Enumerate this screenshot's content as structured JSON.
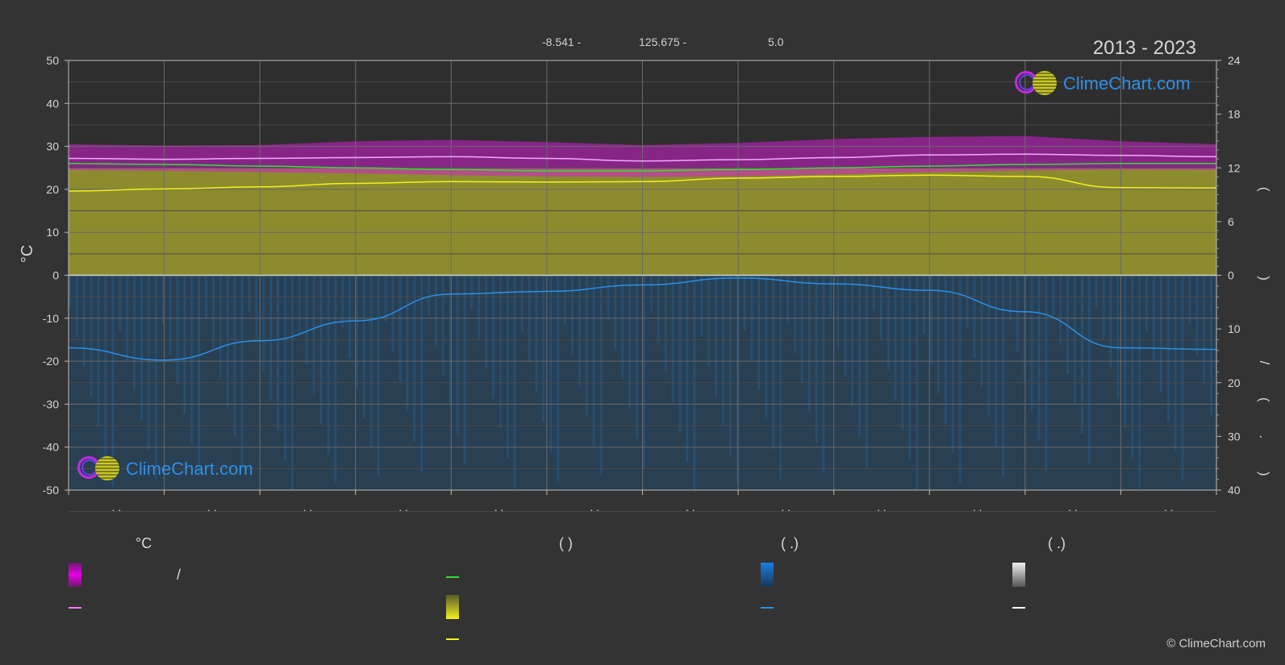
{
  "header": {
    "lat": "-8.541 -",
    "lon": "125.675 -",
    "elev": "5.0",
    "range": "2013 - 2023"
  },
  "brand": "ClimeChart.com",
  "copyright": "© ClimeChart.com",
  "chart_data": {
    "type": "area",
    "x_tick_labels": [
      ". .",
      ". .",
      ". .",
      ". .",
      ". .",
      ". .",
      ". .",
      ". .",
      ". .",
      ". .",
      ". .",
      ". ."
    ],
    "ylabel_left": "°C",
    "ylim_left": [
      -50,
      50
    ],
    "yticks_left": [
      50,
      40,
      30,
      20,
      10,
      0,
      -10,
      -20,
      -30,
      -40,
      -50
    ],
    "yticks_right_top": [
      24,
      18,
      12,
      6,
      0
    ],
    "yticks_right_bottom": [
      10,
      20,
      30,
      40
    ],
    "right_label_top": "( )",
    "right_label_bottom": "/ ( . )",
    "grid": true,
    "months_x": [
      0,
      1,
      2,
      3,
      4,
      5,
      6,
      7,
      8,
      9,
      10,
      11,
      12
    ],
    "series": [
      {
        "values": [
          27.2,
          27.0,
          27.2,
          27.4,
          27.6,
          27.2,
          26.6,
          26.9,
          27.4,
          28.0,
          28.2,
          27.9,
          27.6
        ],
        "color": "#f5a8ff"
      },
      {
        "values": [
          26.0,
          25.8,
          25.4,
          25.0,
          24.6,
          24.3,
          24.3,
          24.6,
          25.0,
          25.4,
          25.8,
          26.0,
          26.0
        ],
        "color": "#33dd33"
      },
      {
        "values": [
          19.6,
          20.1,
          20.6,
          21.4,
          21.8,
          21.7,
          21.8,
          22.6,
          23.0,
          23.3,
          23.0,
          20.4,
          20.3
        ],
        "color": "#f0f020"
      },
      {
        "values": [
          13.5,
          15.8,
          12.2,
          8.5,
          3.5,
          3.0,
          1.8,
          0.5,
          1.6,
          2.8,
          6.8,
          13.5,
          13.8
        ],
        "color": "#2c8fe6"
      }
    ],
    "temp_band": {
      "min": [
        24.5,
        24.3,
        24.0,
        23.7,
        23.3,
        23.0,
        22.9,
        23.0,
        23.5,
        24.0,
        24.4,
        24.6,
        24.5
      ],
      "max": [
        30.5,
        30.2,
        30.3,
        31.2,
        31.5,
        31.0,
        30.3,
        30.8,
        31.7,
        32.2,
        32.4,
        31.2,
        30.5
      ],
      "color": "#d21fd2"
    },
    "sun_area_color": "#9c9c2e",
    "rain_area_color": "#1f5f94"
  },
  "legend": {
    "col1_header": "°C",
    "col1_sep": "/",
    "col2_header": "(         )",
    "col3_header": "(    .)",
    "col4_header": "(    .)",
    "dash": "—",
    "colors": {
      "temp_band": "#e600e6",
      "temp_line": "#ff77ff",
      "daylight_line": "#33dd33",
      "sun_area": "#e8e820",
      "sun_line": "#f0f020",
      "rain_bar": "#1a80e0",
      "rain_line": "#2c8fe6",
      "snow_bar": "#e0e0e0",
      "snow_line": "#ffffff"
    }
  }
}
